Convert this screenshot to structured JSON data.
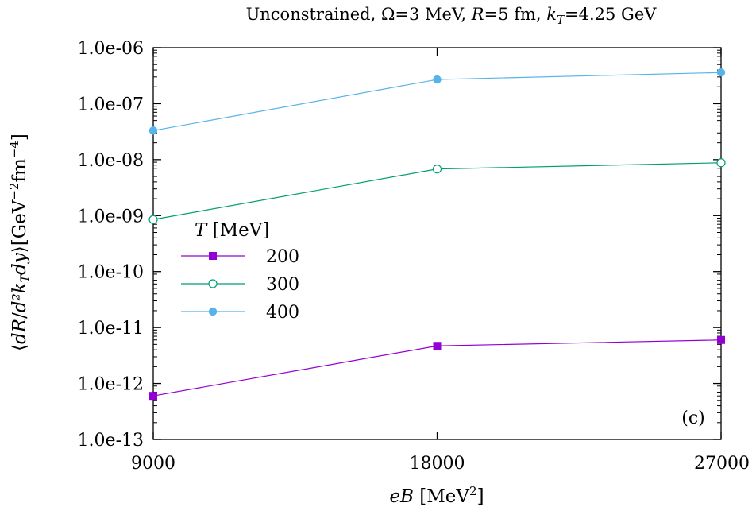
{
  "chart_data": {
    "type": "line",
    "title": "Unconstrained, Ω=3 MeV, R=5 fm, k_T=4.25 GeV",
    "title_parts": {
      "prefix": "Unconstrained, Ω=3 MeV, ",
      "R_symbol": "R",
      "R_value": "=5 fm, ",
      "k_symbol": "k",
      "k_subscript": "T",
      "k_value": "=4.25 GeV"
    },
    "xlabel": "eB [MeV²]",
    "xlabel_parts": {
      "symbol": "eB",
      "unit": " [MeV",
      "exp": "2",
      "close": "]"
    },
    "ylabel": "⟨dR/d²k_T dy⟩[GeV⁻²fm⁻⁴]",
    "ylabel_parts": {
      "open": "⟨",
      "num": "dR",
      "den": "d²k",
      "den_sub": "T",
      "den_tail": "dy",
      "close": "⟩[GeV",
      "exp1": "−2",
      "mid": "fm",
      "exp2": "−4",
      "end": "]"
    },
    "xscale": "linear",
    "yscale": "log",
    "xlim": [
      9000,
      27000
    ],
    "ylim": [
      1e-13,
      1e-06
    ],
    "xticks": [
      9000,
      18000,
      27000
    ],
    "xtick_labels": [
      "9000",
      "18000",
      "27000"
    ],
    "yticks": [
      1e-13,
      1e-12,
      1e-11,
      1e-10,
      1e-09,
      1e-08,
      1e-07,
      1e-06
    ],
    "ytick_labels": [
      "1.0e-13",
      "1.0e-12",
      "1.0e-11",
      "1.0e-10",
      "1.0e-09",
      "1.0e-08",
      "1.0e-07",
      "1.0e-06"
    ],
    "grid": false,
    "legend_title": "T",
    "legend_title_unit": " [MeV]",
    "legend_position": "middle-left",
    "annotation": "(c)",
    "x": [
      9000,
      18000,
      27000
    ],
    "series": [
      {
        "name": "200",
        "values": [
          6e-13,
          4.7e-12,
          6e-12
        ],
        "color": "#9400d3",
        "marker": "filled-square"
      },
      {
        "name": "300",
        "values": [
          8.5e-10,
          6.8e-09,
          8.8e-09
        ],
        "color": "#009e73",
        "marker": "open-circle"
      },
      {
        "name": "400",
        "values": [
          3.3e-08,
          2.7e-07,
          3.6e-07
        ],
        "color": "#56b4e9",
        "marker": "filled-circle"
      }
    ]
  }
}
